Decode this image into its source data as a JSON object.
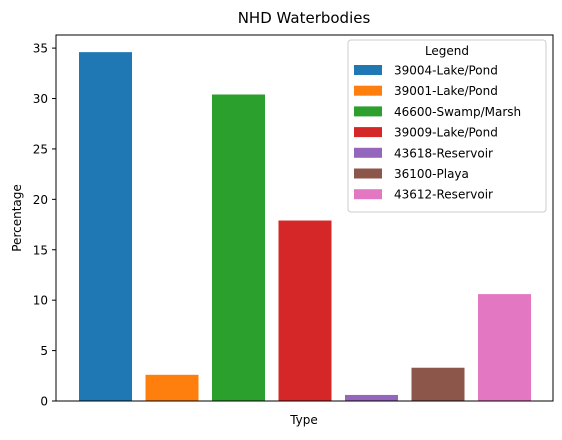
{
  "chart_data": {
    "type": "bar",
    "title": "NHD Waterbodies",
    "xlabel": "Type",
    "ylabel": "Percentage",
    "ylim": [
      0,
      36.3
    ],
    "yticks": [
      0,
      5,
      10,
      15,
      20,
      25,
      30,
      35
    ],
    "xticks_shown": false,
    "grid": false,
    "legend": {
      "title": "Legend",
      "placement": "top-right"
    },
    "series": [
      {
        "name": "39004-Lake/Pond",
        "value": 34.6,
        "color": "#1f77b4"
      },
      {
        "name": "39001-Lake/Pond",
        "value": 2.6,
        "color": "#ff7f0e"
      },
      {
        "name": "46600-Swamp/Marsh",
        "value": 30.4,
        "color": "#2ca02c"
      },
      {
        "name": "39009-Lake/Pond",
        "value": 17.9,
        "color": "#d62728"
      },
      {
        "name": "43618-Reservoir",
        "value": 0.6,
        "color": "#9467bd"
      },
      {
        "name": "36100-Playa",
        "value": 3.3,
        "color": "#8c564b"
      },
      {
        "name": "43612-Reservoir",
        "value": 10.6,
        "color": "#e377c2"
      }
    ]
  }
}
